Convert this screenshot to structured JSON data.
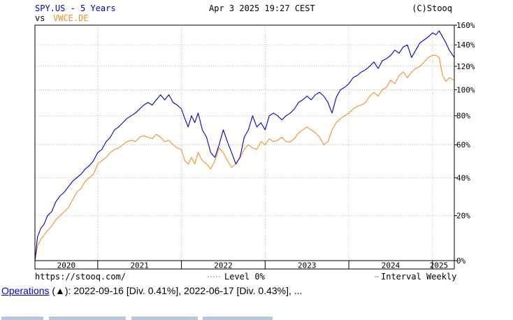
{
  "header": {
    "title": "SPY.US - 5 Years",
    "date": "Apr 3 2025 19:27 CEST",
    "source": "(C)Stooq",
    "vs_prefix": "vs",
    "compare_symbol": "VWCE.DE"
  },
  "footer": {
    "url": "https://stooq.com/",
    "level": "Level 0%",
    "interval": "Interval Weekly"
  },
  "operations": {
    "link": "Operations",
    "text": " (▲): 2022-09-16 [Div. 0.41%], 2022-06-17 [Div. 0.43%], ..."
  },
  "colors": {
    "primary": "#0000c8",
    "secondary": "#f09020",
    "grid": "#bbbbbb",
    "axis": "#000000"
  },
  "chart_data": {
    "type": "line",
    "x_tick_labels": [
      "2020",
      "2021",
      "2022",
      "2023",
      "2024",
      "2025"
    ],
    "xlim": [
      2020.25,
      2025.26
    ],
    "y_tick_labels": [
      "0%",
      "20%",
      "40%",
      "60%",
      "80%",
      "100%",
      "120%",
      "140%",
      "160%"
    ],
    "y_ticks": [
      0,
      20,
      40,
      60,
      80,
      100,
      120,
      140,
      160
    ],
    "y_scale": "log(1+y)",
    "ylim": [
      0,
      160
    ],
    "grid": true,
    "series": [
      {
        "name": "SPY.US",
        "x": [
          2020.25,
          2020.28,
          2020.32,
          2020.36,
          2020.4,
          2020.45,
          2020.5,
          2020.55,
          2020.6,
          2020.65,
          2020.7,
          2020.75,
          2020.8,
          2020.85,
          2020.9,
          2020.95,
          2021.0,
          2021.05,
          2021.1,
          2021.15,
          2021.2,
          2021.25,
          2021.3,
          2021.35,
          2021.4,
          2021.45,
          2021.5,
          2021.55,
          2021.6,
          2021.65,
          2021.7,
          2021.75,
          2021.8,
          2021.85,
          2021.9,
          2021.95,
          2022.0,
          2022.04,
          2022.08,
          2022.12,
          2022.16,
          2022.2,
          2022.25,
          2022.3,
          2022.35,
          2022.4,
          2022.45,
          2022.5,
          2022.55,
          2022.6,
          2022.65,
          2022.7,
          2022.75,
          2022.8,
          2022.85,
          2022.9,
          2022.95,
          2023.0,
          2023.05,
          2023.1,
          2023.15,
          2023.2,
          2023.25,
          2023.3,
          2023.35,
          2023.4,
          2023.45,
          2023.5,
          2023.55,
          2023.6,
          2023.65,
          2023.7,
          2023.75,
          2023.8,
          2023.85,
          2023.9,
          2023.95,
          2024.0,
          2024.05,
          2024.1,
          2024.15,
          2024.2,
          2024.25,
          2024.3,
          2024.35,
          2024.4,
          2024.45,
          2024.5,
          2024.55,
          2024.6,
          2024.65,
          2024.7,
          2024.75,
          2024.8,
          2024.85,
          2024.9,
          2024.95,
          2025.0,
          2025.04,
          2025.08,
          2025.12,
          2025.16,
          2025.2,
          2025.26
        ],
        "y": [
          0,
          10,
          14,
          16,
          20,
          22,
          27,
          30,
          32,
          35,
          38,
          40,
          42,
          45,
          47,
          50,
          55,
          57,
          62,
          65,
          70,
          72,
          75,
          78,
          80,
          82,
          85,
          88,
          90,
          88,
          92,
          96,
          92,
          96,
          90,
          88,
          85,
          78,
          72,
          80,
          75,
          82,
          70,
          65,
          55,
          52,
          60,
          70,
          62,
          55,
          48,
          52,
          65,
          70,
          80,
          72,
          75,
          70,
          80,
          82,
          80,
          77,
          80,
          82,
          85,
          90,
          92,
          95,
          92,
          96,
          98,
          95,
          90,
          82,
          94,
          100,
          102,
          105,
          110,
          112,
          115,
          117,
          120,
          124,
          118,
          125,
          127,
          130,
          135,
          132,
          138,
          140,
          128,
          135,
          142,
          145,
          148,
          152,
          150,
          154,
          148,
          142,
          135,
          128
        ]
      },
      {
        "name": "VWCE.DE",
        "x": [
          2020.25,
          2020.28,
          2020.32,
          2020.36,
          2020.4,
          2020.45,
          2020.5,
          2020.55,
          2020.6,
          2020.65,
          2020.7,
          2020.75,
          2020.8,
          2020.85,
          2020.9,
          2020.95,
          2021.0,
          2021.05,
          2021.1,
          2021.15,
          2021.2,
          2021.25,
          2021.3,
          2021.35,
          2021.4,
          2021.45,
          2021.5,
          2021.55,
          2021.6,
          2021.65,
          2021.7,
          2021.75,
          2021.8,
          2021.85,
          2021.9,
          2021.95,
          2022.0,
          2022.04,
          2022.08,
          2022.12,
          2022.16,
          2022.2,
          2022.25,
          2022.3,
          2022.35,
          2022.4,
          2022.45,
          2022.5,
          2022.55,
          2022.6,
          2022.65,
          2022.7,
          2022.75,
          2022.8,
          2022.85,
          2022.9,
          2022.95,
          2023.0,
          2023.05,
          2023.1,
          2023.15,
          2023.2,
          2023.25,
          2023.3,
          2023.35,
          2023.4,
          2023.45,
          2023.5,
          2023.55,
          2023.6,
          2023.65,
          2023.7,
          2023.75,
          2023.8,
          2023.85,
          2023.9,
          2023.95,
          2024.0,
          2024.05,
          2024.1,
          2024.15,
          2024.2,
          2024.25,
          2024.3,
          2024.35,
          2024.4,
          2024.45,
          2024.5,
          2024.55,
          2024.6,
          2024.65,
          2024.7,
          2024.75,
          2024.8,
          2024.85,
          2024.9,
          2024.95,
          2025.0,
          2025.04,
          2025.08,
          2025.12,
          2025.16,
          2025.2,
          2025.26
        ],
        "y": [
          0,
          6,
          9,
          11,
          13,
          15,
          18,
          20,
          22,
          24,
          28,
          32,
          34,
          38,
          40,
          42,
          48,
          50,
          52,
          55,
          57,
          58,
          60,
          62,
          63,
          62,
          65,
          66,
          65,
          64,
          67,
          65,
          62,
          63,
          60,
          58,
          57,
          50,
          48,
          52,
          48,
          55,
          50,
          48,
          45,
          50,
          58,
          55,
          50,
          46,
          48,
          52,
          57,
          60,
          58,
          57,
          62,
          60,
          64,
          62,
          63,
          65,
          62,
          62,
          64,
          68,
          70,
          72,
          70,
          68,
          65,
          60,
          62,
          70,
          75,
          78,
          80,
          82,
          85,
          87,
          88,
          90,
          95,
          98,
          95,
          100,
          102,
          108,
          105,
          112,
          115,
          110,
          115,
          118,
          120,
          124,
          128,
          130,
          130,
          128,
          112,
          107,
          110,
          108
        ]
      }
    ]
  }
}
